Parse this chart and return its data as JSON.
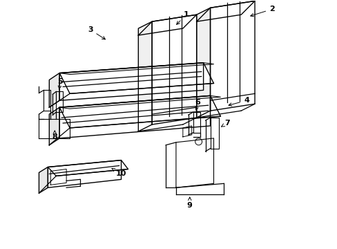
{
  "background_color": "#ffffff",
  "line_color": "#000000",
  "figsize": [
    4.89,
    3.6
  ],
  "dpi": 100,
  "lw": 0.9
}
